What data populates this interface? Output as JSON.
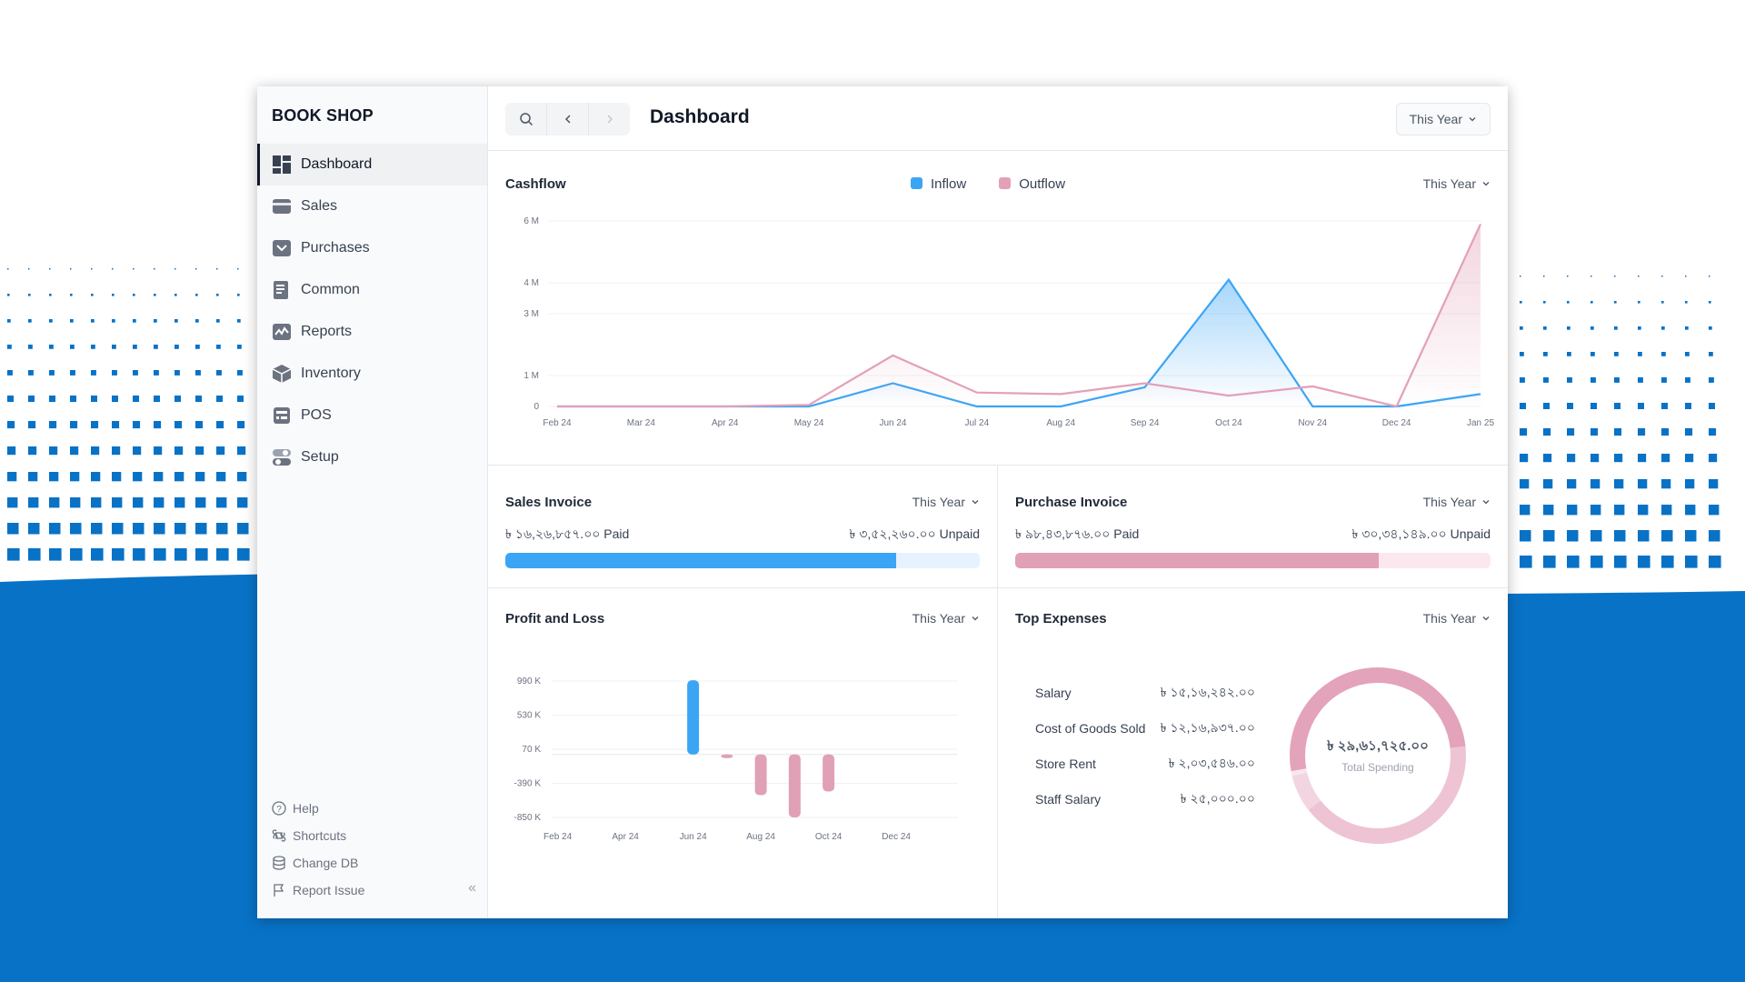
{
  "app": {
    "name": "BOOK SHOP",
    "page_title": "Dashboard",
    "period": "This Year"
  },
  "sidebar": {
    "items": [
      {
        "label": "Dashboard",
        "icon": "dashboard-icon",
        "active": true
      },
      {
        "label": "Sales",
        "icon": "sales-icon"
      },
      {
        "label": "Purchases",
        "icon": "purchases-icon"
      },
      {
        "label": "Common",
        "icon": "common-icon"
      },
      {
        "label": "Reports",
        "icon": "reports-icon"
      },
      {
        "label": "Inventory",
        "icon": "inventory-icon"
      },
      {
        "label": "POS",
        "icon": "pos-icon"
      },
      {
        "label": "Setup",
        "icon": "setup-icon"
      }
    ],
    "footer": [
      {
        "label": "Help",
        "icon": "help-icon"
      },
      {
        "label": "Shortcuts",
        "icon": "command-icon"
      },
      {
        "label": "Change DB",
        "icon": "database-icon"
      },
      {
        "label": "Report Issue",
        "icon": "flag-icon"
      }
    ],
    "collapse": "«"
  },
  "cashflow": {
    "title": "Cashflow",
    "period": "This Year",
    "chart_data": {
      "type": "line",
      "x": [
        "Feb 24",
        "Mar 24",
        "Apr 24",
        "May 24",
        "Jun 24",
        "Jul 24",
        "Aug 24",
        "Sep 24",
        "Oct 24",
        "Nov 24",
        "Dec 24",
        "Jan 25"
      ],
      "y_ticks": [
        "6 M",
        "4 M",
        "3 M",
        "1 M",
        "0"
      ],
      "series": [
        {
          "name": "Inflow",
          "color": "#3ba5f5",
          "values": [
            0,
            0,
            0,
            0,
            0.75,
            0,
            0,
            0.62,
            4.1,
            0,
            0,
            0.4
          ]
        },
        {
          "name": "Outflow",
          "color": "#e3a0b8",
          "values": [
            0,
            0,
            0,
            0.05,
            1.65,
            0.45,
            0.4,
            0.75,
            0.35,
            0.65,
            0,
            5.9
          ]
        }
      ]
    }
  },
  "sales_invoice": {
    "title": "Sales Invoice",
    "period": "This Year",
    "paid": "৳ ১৬,২৬,৮৫৭.০০ Paid",
    "unpaid": "৳ ৩,৫২,২৬০.০০ Unpaid",
    "paid_fraction": 0.823,
    "fill_color": "#3ba5f5",
    "track_color": "#e6f2fd"
  },
  "purchase_invoice": {
    "title": "Purchase Invoice",
    "period": "This Year",
    "paid": "৳ ৯৮,৪৩,৮৭৬.০০ Paid",
    "unpaid": "৳ ৩০,৩৪,১৪৯.০০ Unpaid",
    "paid_fraction": 0.764,
    "fill_color": "#e0a0b6",
    "track_color": "#fbe8ef"
  },
  "profit_loss": {
    "title": "Profit and Loss",
    "period": "This Year",
    "chart_data": {
      "type": "bar",
      "y_ticks": [
        "990 K",
        "530 K",
        "70 K",
        "-390 K",
        "-850 K"
      ],
      "x_labels": [
        "Feb 24",
        "Apr 24",
        "Jun 24",
        "Aug 24",
        "Oct 24",
        "Dec 24"
      ],
      "categories": [
        "Feb 24",
        "Mar 24",
        "Apr 24",
        "May 24",
        "Jun 24",
        "Jul 24",
        "Aug 24",
        "Sep 24",
        "Oct 24",
        "Nov 24",
        "Dec 24",
        "Jan 25"
      ],
      "values": [
        0,
        0,
        0,
        0,
        1000,
        -40,
        -550,
        -850,
        -500,
        0,
        0,
        0
      ],
      "positive_color": "#3ba5f5",
      "negative_color": "#e0a0b6"
    }
  },
  "top_expenses": {
    "title": "Top Expenses",
    "period": "This Year",
    "items": [
      {
        "label": "Salary",
        "value": "৳ ১৫,১৬,২৪২.০০"
      },
      {
        "label": "Cost of Goods Sold",
        "value": "৳ ১২,১৬,৯৩৭.০০"
      },
      {
        "label": "Store Rent",
        "value": "৳ ২,০৩,৫৪৬.০০"
      },
      {
        "label": "Staff Salary",
        "value": "৳ ২৫,০০০.০০"
      }
    ],
    "total": "৳ ২৯,৬১,৭২৫.০০",
    "total_label": "Total Spending",
    "chart_data": {
      "type": "pie",
      "labels": [
        "Salary",
        "Cost of Goods Sold",
        "Store Rent",
        "Staff Salary"
      ],
      "values": [
        1516242,
        1216937,
        203546,
        25000
      ],
      "colors": [
        "#e3a3bb",
        "#eec3d4",
        "#f3d5e1",
        "#f8e6ee"
      ]
    }
  }
}
